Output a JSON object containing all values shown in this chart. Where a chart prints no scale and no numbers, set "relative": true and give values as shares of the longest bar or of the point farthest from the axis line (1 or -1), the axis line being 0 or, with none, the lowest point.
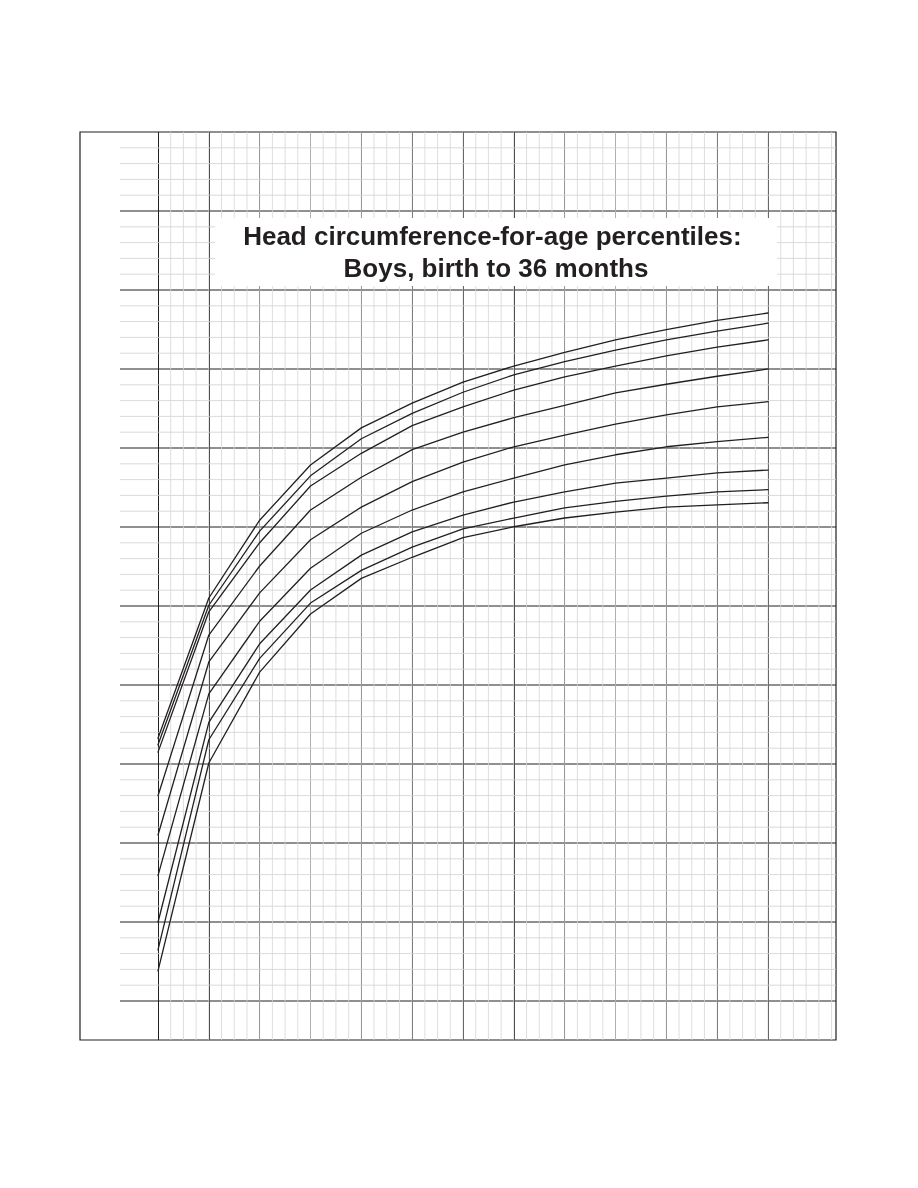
{
  "chart_data": {
    "type": "line",
    "title": "Head circumference-for-age percentiles: Boys, birth to 36 months",
    "relative": true,
    "grid": true,
    "marker": "none",
    "line_style": "solid",
    "categories": [
      null,
      null,
      null,
      null,
      null,
      null,
      null,
      null,
      null,
      null,
      null,
      null,
      null
    ],
    "series": [
      {
        "color": "#231f20",
        "values": [
          0.415,
          0.608,
          0.715,
          0.791,
          0.842,
          0.876,
          0.905,
          0.927,
          0.946,
          0.963,
          0.977,
          0.99,
          1
        ]
      },
      {
        "color": "#231f20",
        "values": [
          0.406,
          0.598,
          0.7,
          0.776,
          0.827,
          0.862,
          0.891,
          0.915,
          0.933,
          0.949,
          0.963,
          0.975,
          0.986
        ]
      },
      {
        "color": "#231f20",
        "values": [
          0.396,
          0.589,
          0.684,
          0.762,
          0.807,
          0.845,
          0.871,
          0.894,
          0.912,
          0.927,
          0.941,
          0.953,
          0.963
        ]
      },
      {
        "color": "#231f20",
        "values": [
          0.336,
          0.557,
          0.652,
          0.729,
          0.774,
          0.812,
          0.836,
          0.856,
          0.873,
          0.89,
          0.902,
          0.913,
          0.923
        ]
      },
      {
        "color": "#231f20",
        "values": [
          0.282,
          0.52,
          0.615,
          0.688,
          0.733,
          0.768,
          0.795,
          0.816,
          0.832,
          0.847,
          0.86,
          0.871,
          0.878
        ]
      },
      {
        "color": "#231f20",
        "values": [
          0.226,
          0.476,
          0.576,
          0.649,
          0.697,
          0.729,
          0.754,
          0.773,
          0.791,
          0.805,
          0.816,
          0.823,
          0.829
        ]
      },
      {
        "color": "#231f20",
        "values": [
          0.162,
          0.437,
          0.545,
          0.619,
          0.667,
          0.699,
          0.722,
          0.74,
          0.754,
          0.766,
          0.773,
          0.78,
          0.784
        ]
      },
      {
        "color": "#231f20",
        "values": [
          0.124,
          0.413,
          0.525,
          0.601,
          0.646,
          0.678,
          0.703,
          0.718,
          0.732,
          0.741,
          0.748,
          0.754,
          0.757
        ]
      },
      {
        "color": "#231f20",
        "values": [
          0.095,
          0.381,
          0.506,
          0.586,
          0.635,
          0.664,
          0.691,
          0.706,
          0.718,
          0.726,
          0.733,
          0.736,
          0.739
        ]
      }
    ]
  }
}
